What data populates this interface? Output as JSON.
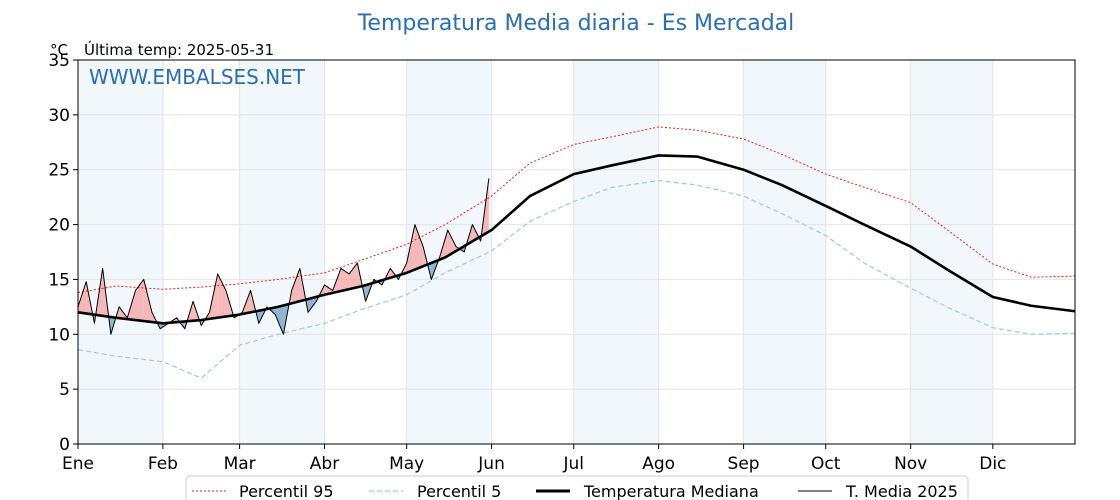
{
  "chart_data": {
    "type": "line",
    "title": "Temperatura Media diaria - Es Mercadal",
    "unit_label": "°C",
    "last_temp_label": "Última temp: 2025-05-31",
    "watermark": "WWW.EMBALSES.NET",
    "ylim": [
      0,
      35
    ],
    "y_ticks": [
      0,
      5,
      10,
      15,
      20,
      25,
      30,
      35
    ],
    "months": [
      "Ene",
      "Feb",
      "Mar",
      "Abr",
      "May",
      "Jun",
      "Jul",
      "Ago",
      "Sep",
      "Oct",
      "Nov",
      "Dic"
    ],
    "month_start_days": [
      1,
      32,
      60,
      91,
      121,
      152,
      182,
      213,
      244,
      274,
      305,
      335
    ],
    "days_in_year": 365,
    "grid": true,
    "legend_position": "bottom",
    "series": [
      {
        "name": "Percentil 95",
        "style": "dotted",
        "color": "#e8221b",
        "days": [
          1,
          15,
          32,
          46,
          60,
          74,
          91,
          105,
          121,
          135,
          152,
          166,
          182,
          196,
          213,
          227,
          244,
          258,
          274,
          288,
          305,
          319,
          335,
          349,
          365
        ],
        "values": [
          13.8,
          14.4,
          14.1,
          14.3,
          14.6,
          15.0,
          15.6,
          16.8,
          18.2,
          20.0,
          22.6,
          25.6,
          27.3,
          28.0,
          28.9,
          28.6,
          27.8,
          26.4,
          24.6,
          23.4,
          22.0,
          19.4,
          16.4,
          15.2,
          15.3
        ]
      },
      {
        "name": "Percentil 5",
        "style": "dashed",
        "color": "#9ecbe0",
        "days": [
          1,
          15,
          32,
          46,
          60,
          74,
          91,
          105,
          121,
          135,
          152,
          166,
          182,
          196,
          213,
          227,
          244,
          258,
          274,
          288,
          305,
          319,
          335,
          349,
          365
        ],
        "values": [
          8.6,
          8.0,
          7.5,
          6.0,
          9.0,
          10.0,
          11.0,
          12.3,
          13.6,
          15.6,
          17.6,
          20.3,
          22.1,
          23.4,
          24.0,
          23.6,
          22.6,
          21.0,
          19.0,
          16.5,
          14.2,
          12.4,
          10.6,
          10.0,
          10.1
        ]
      },
      {
        "name": "Temperatura Mediana",
        "style": "thick",
        "color": "#000000",
        "days": [
          1,
          15,
          32,
          46,
          60,
          74,
          91,
          105,
          121,
          135,
          152,
          166,
          182,
          196,
          213,
          227,
          244,
          258,
          274,
          288,
          305,
          319,
          335,
          349,
          365
        ],
        "values": [
          12.0,
          11.5,
          11.0,
          11.3,
          11.8,
          12.5,
          13.6,
          14.4,
          15.6,
          17.0,
          19.5,
          22.6,
          24.6,
          25.4,
          26.3,
          26.2,
          25.0,
          23.6,
          21.7,
          20.0,
          18.0,
          15.8,
          13.4,
          12.6,
          12.1
        ]
      },
      {
        "name": "T. Media 2025",
        "style": "thin",
        "color": "#000000",
        "days": [
          1,
          4,
          7,
          10,
          13,
          16,
          19,
          22,
          25,
          28,
          31,
          34,
          37,
          40,
          43,
          46,
          49,
          52,
          55,
          58,
          61,
          64,
          67,
          70,
          73,
          76,
          79,
          82,
          85,
          88,
          91,
          94,
          97,
          100,
          103,
          106,
          109,
          112,
          115,
          118,
          121,
          124,
          127,
          130,
          133,
          136,
          139,
          142,
          145,
          148,
          151
        ],
        "values": [
          12.5,
          14.8,
          11.0,
          16.0,
          10.0,
          12.5,
          11.5,
          14.0,
          15.0,
          12.0,
          10.5,
          11.0,
          11.5,
          10.5,
          13.0,
          10.8,
          12.0,
          15.5,
          14.0,
          11.5,
          12.0,
          14.0,
          11.0,
          12.5,
          11.8,
          10.0,
          14.0,
          16.0,
          12.0,
          13.0,
          14.5,
          14.0,
          16.0,
          15.5,
          16.5,
          13.0,
          15.0,
          14.5,
          16.0,
          15.0,
          16.5,
          20.0,
          18.0,
          15.0,
          17.0,
          19.5,
          18.0,
          17.5,
          20.0,
          18.5,
          24.2
        ]
      }
    ]
  }
}
